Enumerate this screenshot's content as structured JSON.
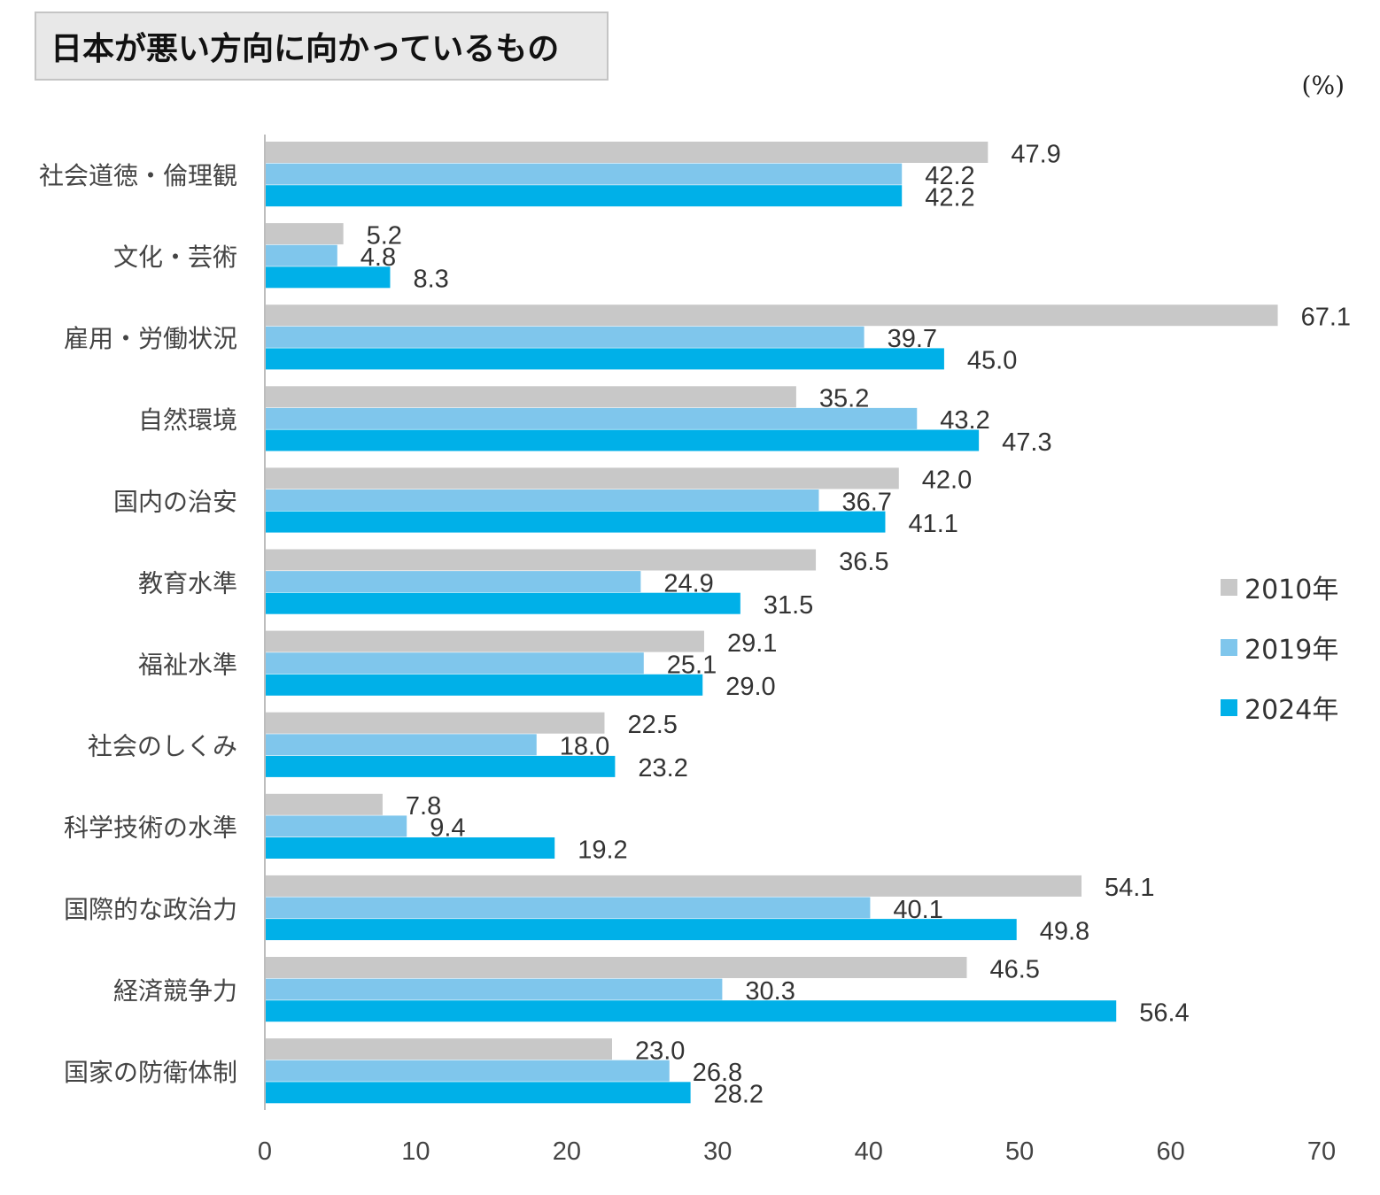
{
  "chart_data": {
    "type": "bar",
    "orientation": "horizontal",
    "title": "日本が悪い方向に向かっているもの",
    "unit_label": "(%)",
    "categories": [
      "社会道徳・倫理観",
      "文化・芸術",
      "雇用・労働状況",
      "自然環境",
      "国内の治安",
      "教育水準",
      "福祉水準",
      "社会のしくみ",
      "科学技術の水準",
      "国際的な政治力",
      "経済競争力",
      "国家の防衛体制"
    ],
    "series": [
      {
        "name": "2010年",
        "color": "#c8c8c8",
        "values": [
          47.9,
          5.2,
          67.1,
          35.2,
          42.0,
          36.5,
          29.1,
          22.5,
          7.8,
          54.1,
          46.5,
          23.0
        ]
      },
      {
        "name": "2019年",
        "color": "#7fc6ec",
        "values": [
          42.2,
          4.8,
          39.7,
          43.2,
          36.7,
          24.9,
          25.1,
          18.0,
          9.4,
          40.1,
          30.3,
          26.8
        ]
      },
      {
        "name": "2024年",
        "color": "#00b0e8",
        "values": [
          42.2,
          8.3,
          45.0,
          47.3,
          41.1,
          31.5,
          29.0,
          23.2,
          19.2,
          49.8,
          56.4,
          28.2
        ]
      }
    ],
    "xlim": [
      0,
      70
    ],
    "xticks": [
      0,
      10,
      20,
      30,
      40,
      50,
      60,
      70
    ],
    "legend_position": "right",
    "grid": false
  }
}
